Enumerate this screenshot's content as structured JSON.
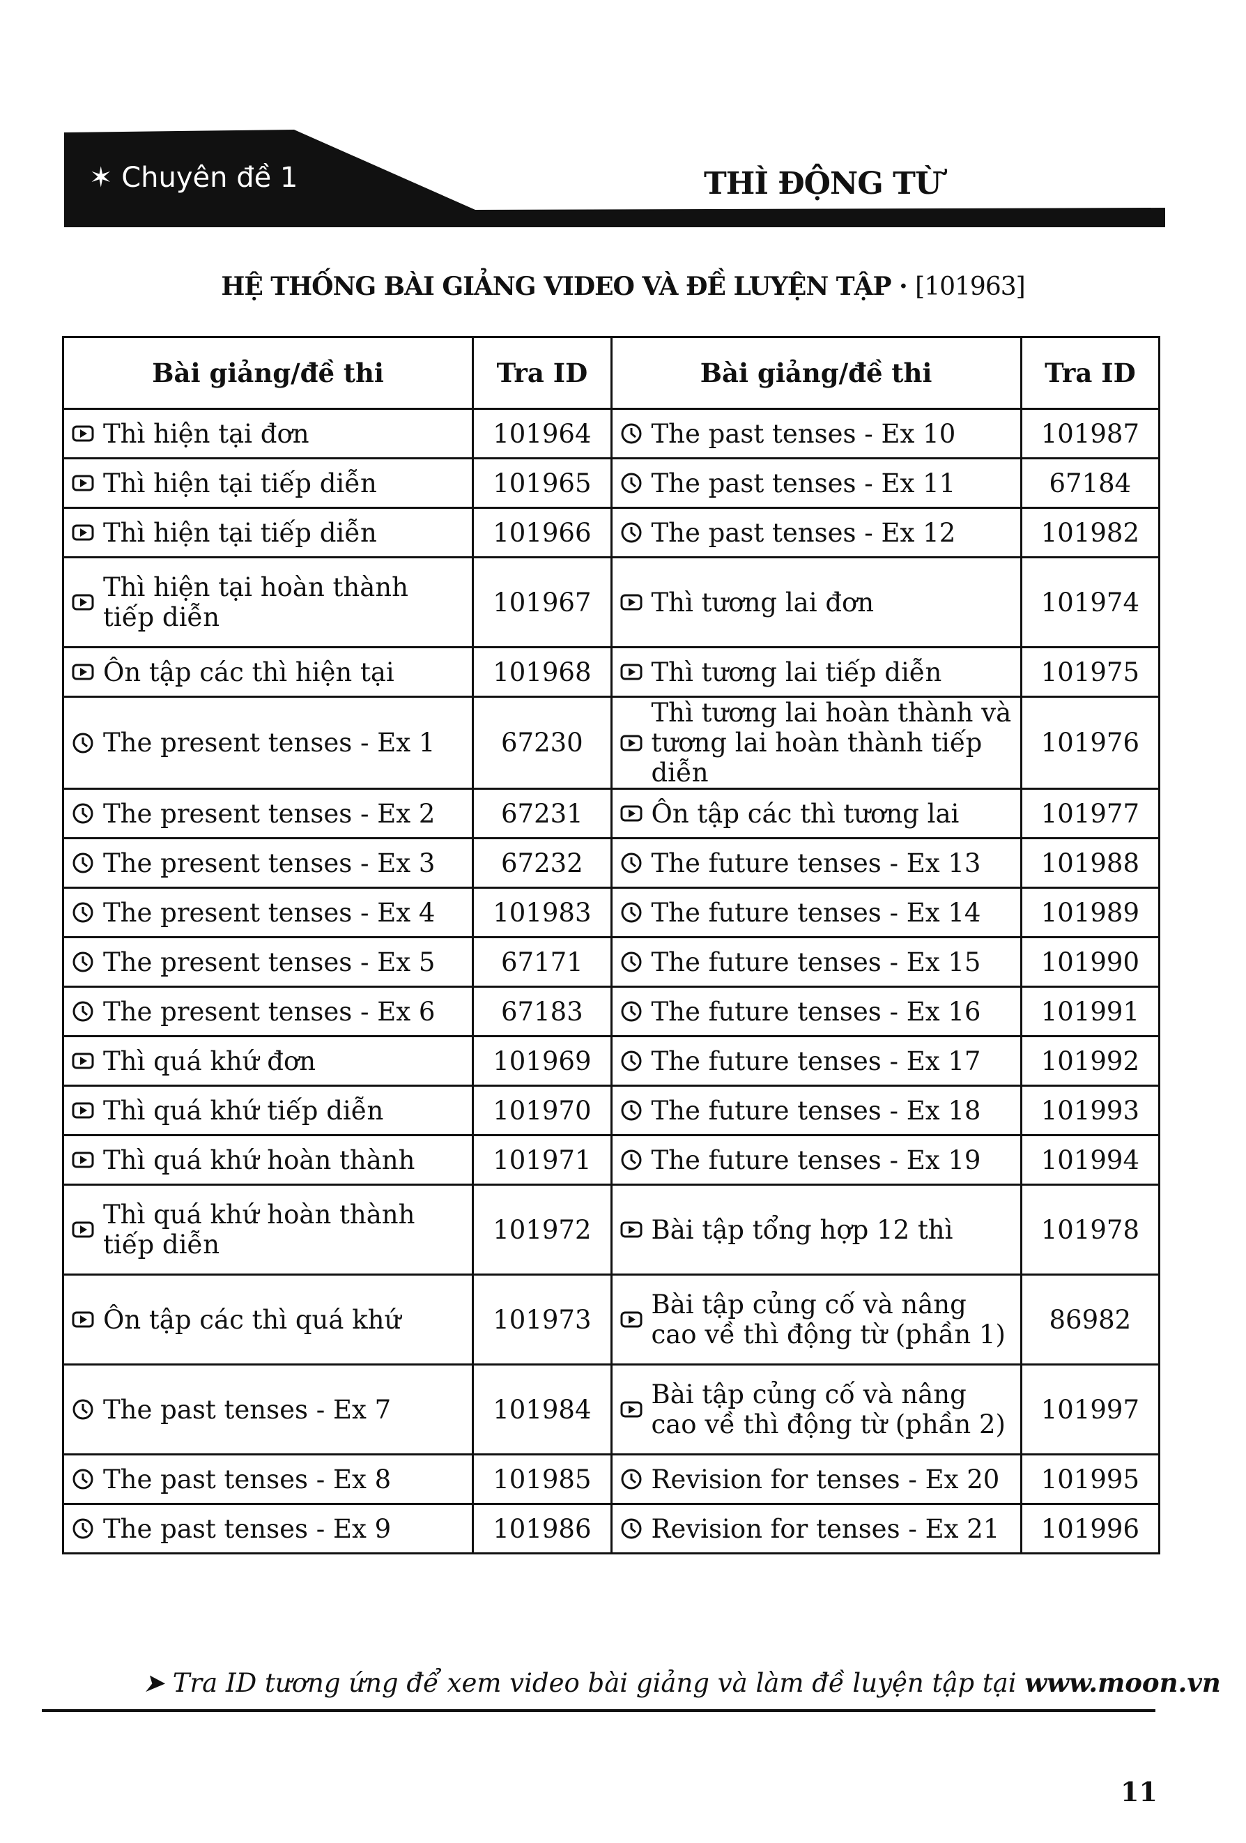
{
  "header": {
    "chapter": "✶ Chuyên đề 1",
    "title": "THÌ ĐỘNG TỪ"
  },
  "subtitle": {
    "text": "HỆ THỐNG BÀI GIẢNG VIDEO VÀ ĐỀ LUYỆN TẬP ·",
    "id": "[101963]"
  },
  "table": {
    "headers": [
      "Bài giảng/đề thi",
      "Tra ID",
      "Bài giảng/đề thi",
      "Tra ID"
    ],
    "rows": [
      {
        "l_icon": "video",
        "l": "Thì hiện tại đơn",
        "l_id": "101964",
        "r_icon": "clock",
        "r": "The past tenses - Ex 10",
        "r_id": "101987"
      },
      {
        "l_icon": "video",
        "l": "Thì hiện tại tiếp diễn",
        "l_id": "101965",
        "r_icon": "clock",
        "r": "The past tenses - Ex 11",
        "r_id": "67184"
      },
      {
        "l_icon": "video",
        "l": "Thì hiện tại tiếp diễn",
        "l_id": "101966",
        "r_icon": "clock",
        "r": "The past tenses - Ex 12",
        "r_id": "101982"
      },
      {
        "l_icon": "video",
        "l": "Thì hiện tại hoàn thành tiếp diễn",
        "l_id": "101967",
        "r_icon": "video",
        "r": "Thì tương lai đơn",
        "r_id": "101974"
      },
      {
        "l_icon": "video",
        "l": "Ôn tập các thì hiện tại",
        "l_id": "101968",
        "r_icon": "video",
        "r": "Thì tương lai tiếp diễn",
        "r_id": "101975"
      },
      {
        "l_icon": "clock",
        "l": "The present tenses - Ex 1",
        "l_id": "67230",
        "r_icon": "video",
        "r": "Thì tương lai hoàn thành và tương lai hoàn thành tiếp diễn",
        "r_id": "101976"
      },
      {
        "l_icon": "clock",
        "l": "The present tenses - Ex 2",
        "l_id": "67231",
        "r_icon": "video",
        "r": "Ôn tập các thì tương lai",
        "r_id": "101977"
      },
      {
        "l_icon": "clock",
        "l": "The present tenses - Ex 3",
        "l_id": "67232",
        "r_icon": "clock",
        "r": "The future tenses - Ex 13",
        "r_id": "101988"
      },
      {
        "l_icon": "clock",
        "l": "The present tenses - Ex 4",
        "l_id": "101983",
        "r_icon": "clock",
        "r": "The future tenses - Ex 14",
        "r_id": "101989"
      },
      {
        "l_icon": "clock",
        "l": "The present tenses - Ex 5",
        "l_id": "67171",
        "r_icon": "clock",
        "r": "The future tenses - Ex 15",
        "r_id": "101990"
      },
      {
        "l_icon": "clock",
        "l": "The present tenses - Ex 6",
        "l_id": "67183",
        "r_icon": "clock",
        "r": "The future tenses - Ex 16",
        "r_id": "101991"
      },
      {
        "l_icon": "video",
        "l": "Thì quá khứ đơn",
        "l_id": "101969",
        "r_icon": "clock",
        "r": "The future tenses - Ex 17",
        "r_id": "101992"
      },
      {
        "l_icon": "video",
        "l": "Thì quá khứ tiếp diễn",
        "l_id": "101970",
        "r_icon": "clock",
        "r": "The future tenses - Ex 18",
        "r_id": "101993"
      },
      {
        "l_icon": "video",
        "l": "Thì quá khứ hoàn thành",
        "l_id": "101971",
        "r_icon": "clock",
        "r": "The future tenses - Ex 19",
        "r_id": "101994"
      },
      {
        "l_icon": "video",
        "l": "Thì quá khứ hoàn thành tiếp diễn",
        "l_id": "101972",
        "r_icon": "video",
        "r": "Bài tập tổng hợp 12 thì",
        "r_id": "101978"
      },
      {
        "l_icon": "video",
        "l": "Ôn tập các thì quá khứ",
        "l_id": "101973",
        "r_icon": "video",
        "r": "Bài tập củng cố và nâng cao về thì động từ (phần 1)",
        "r_id": "86982"
      },
      {
        "l_icon": "clock",
        "l": "The past tenses - Ex 7",
        "l_id": "101984",
        "r_icon": "video",
        "r": "Bài tập củng cố và nâng cao về thì động từ (phần 2)",
        "r_id": "101997"
      },
      {
        "l_icon": "clock",
        "l": "The past tenses - Ex 8",
        "l_id": "101985",
        "r_icon": "clock",
        "r": "Revision for tenses - Ex 20",
        "r_id": "101995"
      },
      {
        "l_icon": "clock",
        "l": "The past tenses - Ex 9",
        "l_id": "101986",
        "r_icon": "clock",
        "r": "Revision for tenses - Ex 21",
        "r_id": "101996"
      }
    ]
  },
  "footer": {
    "text": "Tra ID tương ứng để xem video bài giảng và làm đề luyện tập tại",
    "site": "www.moon.vn"
  },
  "page_number": "11"
}
